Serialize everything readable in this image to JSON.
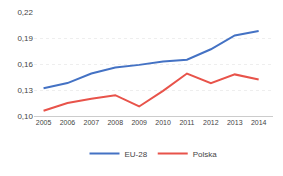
{
  "chart_data": {
    "type": "line",
    "x": [
      2005,
      2006,
      2007,
      2008,
      2009,
      2010,
      2011,
      2012,
      2013,
      2014
    ],
    "series": [
      {
        "name": "EU-28",
        "color": "#4472C4",
        "values": [
          0.132,
          0.138,
          0.149,
          0.156,
          0.159,
          0.163,
          0.165,
          0.177,
          0.193,
          0.198
        ]
      },
      {
        "name": "Polska",
        "color": "#E8534A",
        "values": [
          0.106,
          0.115,
          0.12,
          0.124,
          0.111,
          0.129,
          0.149,
          0.138,
          0.148,
          0.142
        ]
      }
    ],
    "xlim": [
      2004.6,
      2014.6
    ],
    "xticks": [
      2005,
      2006,
      2007,
      2008,
      2009,
      2010,
      2011,
      2012,
      2013,
      2014
    ],
    "ylim": [
      0.1,
      0.22
    ],
    "yticks": [
      {
        "value": 0.1,
        "label": "0,10"
      },
      {
        "value": 0.13,
        "label": "0,13"
      },
      {
        "value": 0.16,
        "label": "0,16"
      },
      {
        "value": 0.19,
        "label": "0,19"
      },
      {
        "value": 0.22,
        "label": "0,22"
      }
    ],
    "grid": true,
    "legend": "bottom"
  }
}
